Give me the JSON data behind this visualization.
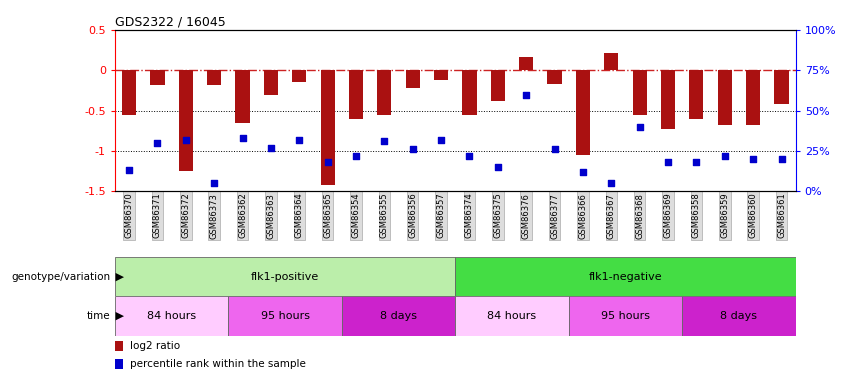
{
  "title": "GDS2322 / 16045",
  "samples": [
    "GSM86370",
    "GSM86371",
    "GSM86372",
    "GSM86373",
    "GSM86362",
    "GSM86363",
    "GSM86364",
    "GSM86365",
    "GSM86354",
    "GSM86355",
    "GSM86356",
    "GSM86357",
    "GSM86374",
    "GSM86375",
    "GSM86376",
    "GSM86377",
    "GSM86366",
    "GSM86367",
    "GSM86368",
    "GSM86369",
    "GSM86358",
    "GSM86359",
    "GSM86360",
    "GSM86361"
  ],
  "log2_ratio": [
    -0.55,
    -0.18,
    -1.25,
    -0.18,
    -0.65,
    -0.3,
    -0.15,
    -1.42,
    -0.6,
    -0.55,
    -0.22,
    -0.12,
    -0.55,
    -0.38,
    0.17,
    -0.17,
    -1.05,
    0.22,
    -0.55,
    -0.73,
    -0.6,
    -0.68,
    -0.68,
    -0.42
  ],
  "percentile_rank": [
    13,
    30,
    32,
    5,
    33,
    27,
    32,
    18,
    22,
    31,
    26,
    32,
    22,
    15,
    60,
    26,
    12,
    5,
    40,
    18,
    18,
    22,
    20,
    20
  ],
  "ylim_left": [
    -1.5,
    0.5
  ],
  "ylim_right": [
    0,
    100
  ],
  "bar_color": "#aa1111",
  "scatter_color": "#0000cc",
  "hline_color": "#cc2222",
  "dotted_hlines": [
    -0.5,
    -1.0
  ],
  "left_yticks": [
    -1.5,
    -1.0,
    -0.5,
    0.0,
    0.5
  ],
  "right_yticks": [
    0,
    25,
    50,
    75,
    100
  ],
  "right_yticklabels": [
    "0%",
    "25%",
    "50%",
    "75%",
    "100%"
  ],
  "genotype_groups": [
    {
      "label": "flk1-positive",
      "start": 0,
      "end": 11,
      "color": "#bbeeaa"
    },
    {
      "label": "flk1-negative",
      "start": 12,
      "end": 23,
      "color": "#44dd44"
    }
  ],
  "time_groups": [
    {
      "label": "84 hours",
      "start": 0,
      "end": 3,
      "color": "#ffccff"
    },
    {
      "label": "95 hours",
      "start": 4,
      "end": 7,
      "color": "#ee66ee"
    },
    {
      "label": "8 days",
      "start": 8,
      "end": 11,
      "color": "#cc22cc"
    },
    {
      "label": "84 hours",
      "start": 12,
      "end": 15,
      "color": "#ffccff"
    },
    {
      "label": "95 hours",
      "start": 16,
      "end": 19,
      "color": "#ee66ee"
    },
    {
      "label": "8 days",
      "start": 20,
      "end": 23,
      "color": "#cc22cc"
    }
  ],
  "legend": [
    {
      "label": "log2 ratio",
      "color": "#aa1111"
    },
    {
      "label": "percentile rank within the sample",
      "color": "#0000cc"
    }
  ],
  "figsize": [
    8.51,
    3.75
  ],
  "dpi": 100
}
